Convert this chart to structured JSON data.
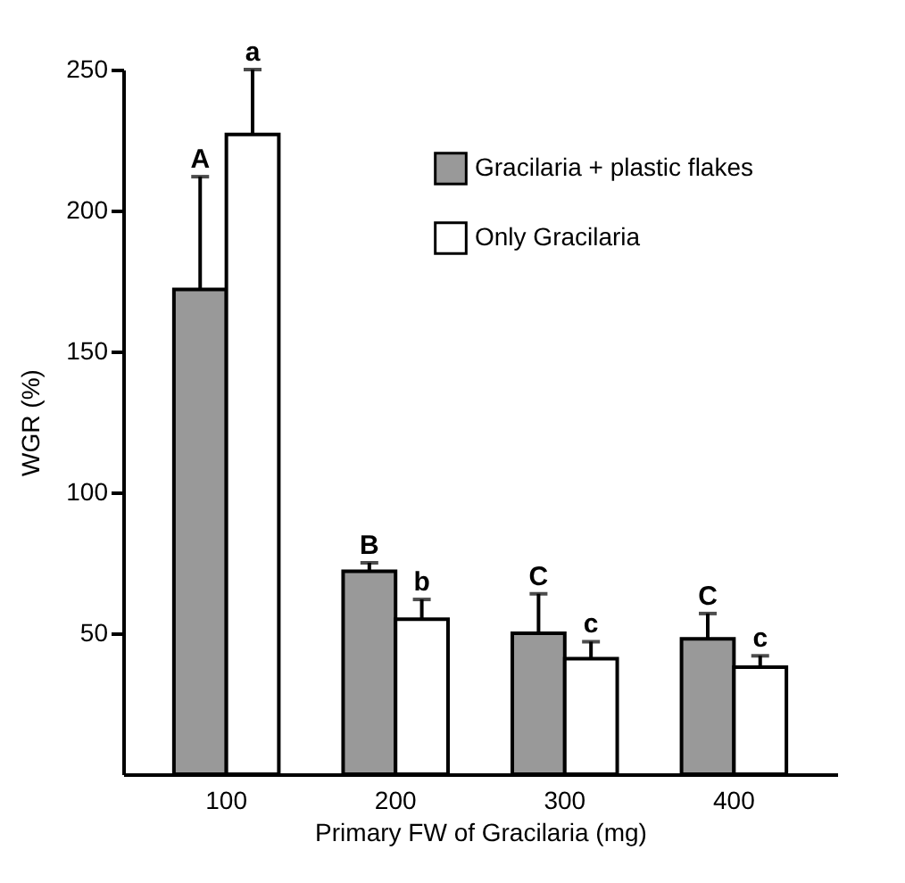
{
  "chart_data": {
    "type": "bar",
    "xlabel": "Primary FW of Gracilaria (mg)",
    "ylabel": "WGR (%)",
    "categories": [
      "100",
      "200",
      "300",
      "400"
    ],
    "series": [
      {
        "name": "Gracilaria + plastic flakes",
        "color": "#999999",
        "values": [
          172,
          72,
          50,
          48
        ],
        "errors": [
          [
            172,
            212
          ],
          [
            72,
            75
          ],
          [
            50,
            64
          ],
          [
            48,
            57
          ]
        ]
      },
      {
        "name": "Only Gracilaria",
        "color": "#ffffff",
        "values": [
          227,
          55,
          41,
          38
        ],
        "errors": [
          [
            227,
            250
          ],
          [
            55,
            62
          ],
          [
            41,
            47
          ],
          [
            38,
            42
          ]
        ]
      }
    ],
    "ylim": [
      0,
      250
    ],
    "yticks": [
      50,
      100,
      150,
      200,
      250
    ],
    "grid": false,
    "legend": "top right",
    "annotations": [
      "A",
      "a",
      "B",
      "b",
      "C",
      "c",
      "C",
      "c"
    ]
  }
}
